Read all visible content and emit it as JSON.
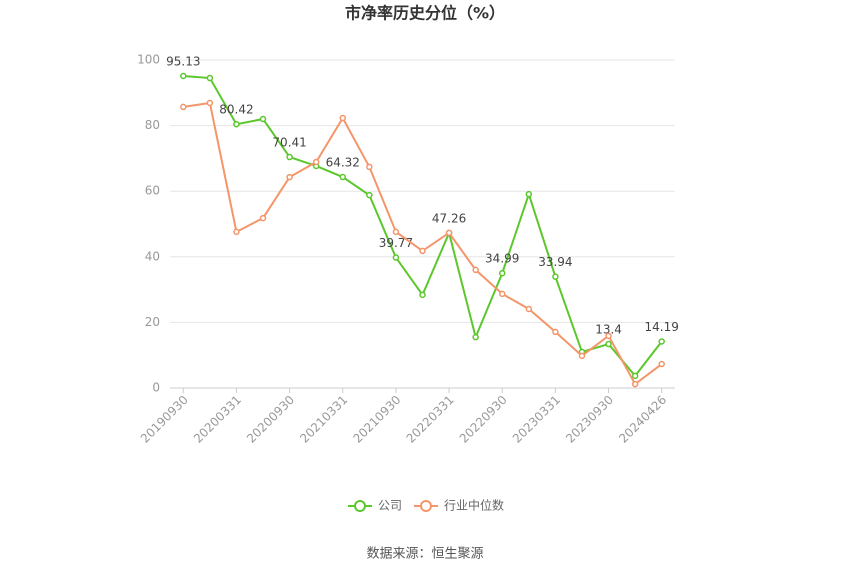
{
  "chart_data": {
    "type": "line",
    "title": "市净率历史分位（%）",
    "source": "数据来源：恒生聚源",
    "categories": [
      "20190930",
      null,
      "20200331",
      null,
      "20200930",
      null,
      "20210331",
      null,
      "20210930",
      null,
      "20220331",
      null,
      "20220930",
      null,
      "20230331",
      null,
      "20230930",
      null,
      "20240426"
    ],
    "series": [
      {
        "name": "公司",
        "color": "#5cc72c",
        "values": [
          95.13,
          94.5,
          80.42,
          82.0,
          70.41,
          67.7,
          64.32,
          58.8,
          39.77,
          28.4,
          47.26,
          15.5,
          34.99,
          59.1,
          33.94,
          11.0,
          13.4,
          3.7,
          14.19
        ]
      },
      {
        "name": "行业中位数",
        "color": "#f4956a",
        "values": [
          85.7,
          86.9,
          47.6,
          51.8,
          64.3,
          68.9,
          82.3,
          67.4,
          47.6,
          41.8,
          47.3,
          36.0,
          28.7,
          24.1,
          17.1,
          9.8,
          15.9,
          1.2,
          7.3
        ]
      }
    ],
    "ylim": [
      0,
      100
    ],
    "yticks": [
      0,
      20,
      40,
      60,
      80,
      100
    ],
    "grid": true
  }
}
